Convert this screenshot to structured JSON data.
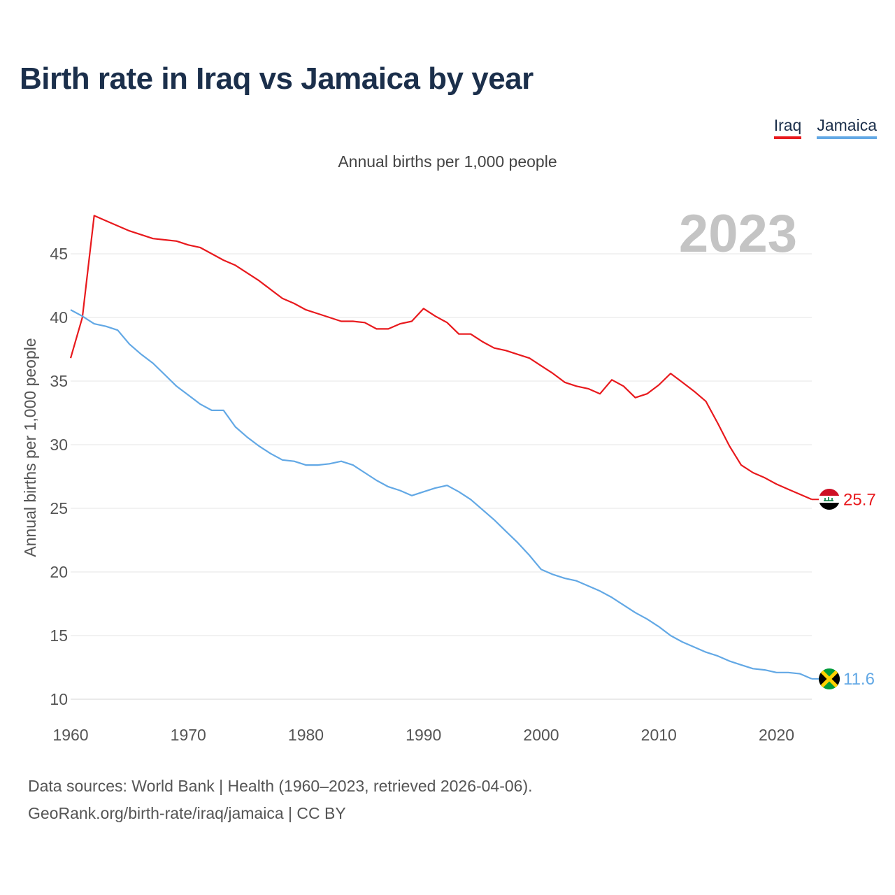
{
  "title": "Birth rate in Iraq vs Jamaica by year",
  "subtitle": "Annual births per 1,000 people",
  "legend": [
    {
      "label": "Iraq",
      "color": "#e8191d"
    },
    {
      "label": "Jamaica",
      "color": "#62a8e5"
    }
  ],
  "footer": {
    "line1": "Data sources: World Bank | Health (1960–2023, retrieved 2026-04-06).",
    "line2": "GeoRank.org/birth-rate/iraq/jamaica | CC BY"
  },
  "chart_data": {
    "type": "line",
    "title": "Birth rate in Iraq vs Jamaica by year",
    "ylabel": "Annual births per 1,000 people",
    "xlabel": "",
    "year_label": "2023",
    "xlim": [
      1960,
      2023
    ],
    "ylim": [
      10,
      48
    ],
    "x_ticks": [
      1960,
      1970,
      1980,
      1990,
      2000,
      2010,
      2020
    ],
    "y_ticks": [
      10,
      15,
      20,
      25,
      30,
      35,
      40,
      45
    ],
    "grid": true,
    "x": [
      1960,
      1961,
      1962,
      1963,
      1964,
      1965,
      1966,
      1967,
      1968,
      1969,
      1970,
      1971,
      1972,
      1973,
      1974,
      1975,
      1976,
      1977,
      1978,
      1979,
      1980,
      1981,
      1982,
      1983,
      1984,
      1985,
      1986,
      1987,
      1988,
      1989,
      1990,
      1991,
      1992,
      1993,
      1994,
      1995,
      1996,
      1997,
      1998,
      1999,
      2000,
      2001,
      2002,
      2003,
      2004,
      2005,
      2006,
      2007,
      2008,
      2009,
      2010,
      2011,
      2012,
      2013,
      2014,
      2015,
      2016,
      2017,
      2018,
      2019,
      2020,
      2021,
      2022,
      2023
    ],
    "series": [
      {
        "name": "Iraq",
        "color": "#e8191d",
        "end_label": "25.7",
        "values": [
          36.8,
          40.0,
          48.0,
          47.6,
          47.2,
          46.8,
          46.5,
          46.2,
          46.1,
          46.0,
          45.7,
          45.5,
          45.0,
          44.5,
          44.1,
          43.5,
          42.9,
          42.2,
          41.5,
          41.1,
          40.6,
          40.3,
          40.0,
          39.7,
          39.7,
          39.6,
          39.1,
          39.1,
          39.5,
          39.7,
          40.7,
          40.1,
          39.6,
          38.7,
          38.7,
          38.1,
          37.6,
          37.4,
          37.1,
          36.8,
          36.2,
          35.6,
          34.9,
          34.6,
          34.4,
          34.0,
          35.1,
          34.6,
          33.7,
          34.0,
          34.7,
          35.6,
          34.9,
          34.2,
          33.4,
          31.7,
          29.9,
          28.4,
          27.8,
          27.4,
          26.9,
          26.5,
          26.1,
          25.7
        ]
      },
      {
        "name": "Jamaica",
        "color": "#62a8e5",
        "end_label": "11.6",
        "values": [
          40.6,
          40.1,
          39.5,
          39.3,
          39.0,
          37.9,
          37.1,
          36.4,
          35.5,
          34.6,
          33.9,
          33.2,
          32.7,
          32.7,
          31.4,
          30.6,
          29.9,
          29.3,
          28.8,
          28.7,
          28.4,
          28.4,
          28.5,
          28.7,
          28.4,
          27.8,
          27.2,
          26.7,
          26.4,
          26.0,
          26.3,
          26.6,
          26.8,
          26.3,
          25.7,
          24.9,
          24.1,
          23.2,
          22.3,
          21.3,
          20.2,
          19.8,
          19.5,
          19.3,
          18.9,
          18.5,
          18.0,
          17.4,
          16.8,
          16.3,
          15.7,
          15.0,
          14.5,
          14.1,
          13.7,
          13.4,
          13.0,
          12.7,
          12.4,
          12.3,
          12.1,
          12.1,
          12.0,
          11.6
        ]
      }
    ]
  }
}
